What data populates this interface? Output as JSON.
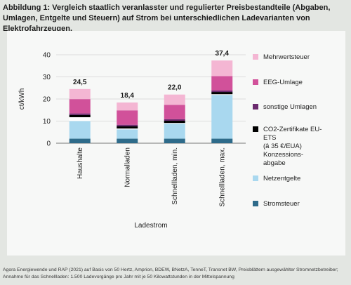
{
  "title": "Abbildung 1:  Vergleich staatlich veranlasster und regulierter Preisbestandteile (Abgaben, Umlagen, Entgelte und Steuern) auf Strom bei unterschiedlichen Ladevarianten von Elektrofahrzeugen.",
  "source": "Agora Energiewende und RAP (2021) auf Basis von 50 Hertz, Amprion, BDEW, BNetzA, TenneT, Transnet BW, Preisblättern ausgewählter Stromnetzbetreiber; Annahme für das Schnellladen: 1.500 Ladevorgänge pro Jahr mit je 50 Kilowattstunden in der Mittelspannung",
  "chart_data": {
    "type": "bar",
    "stacked": true,
    "categories": [
      "Haushalte",
      "Normalladen",
      "Schnellladen, min.",
      "Schnellladen, max."
    ],
    "totals": [
      "24,5",
      "18,4",
      "22,0",
      "37,4"
    ],
    "ylabel": "ct/kWh",
    "xlabel": "Ladestrom",
    "ylim": [
      0,
      40
    ],
    "yticks": [
      0,
      10,
      20,
      30,
      40
    ],
    "grid": true,
    "legend_position": "right",
    "series": [
      {
        "name": "Stromsteuer",
        "color": "#2e6b8a",
        "values": [
          2.05,
          2.05,
          2.05,
          2.05
        ]
      },
      {
        "name": "Netzentgelte",
        "color": "#a9d8ef",
        "values": [
          8.0,
          4.2,
          6.8,
          19.8
        ]
      },
      {
        "name": "Konzessions-abgabe",
        "color": "#ffffff",
        "values": [
          1.7,
          0.4,
          0.3,
          0.3
        ]
      },
      {
        "name": "CO2-Zertifikate EU-ETS (â 35 €/EUA)",
        "color": "#000000",
        "values": [
          1.0,
          1.0,
          1.0,
          1.0
        ]
      },
      {
        "name": "sonstige Umlagen",
        "color": "#6b2a6e",
        "values": [
          0.7,
          0.7,
          0.7,
          0.7
        ]
      },
      {
        "name": "EEG-Umlage",
        "color": "#d1519a",
        "values": [
          6.5,
          6.5,
          6.5,
          6.5
        ]
      },
      {
        "name": "Mehrwertsteuer",
        "color": "#f4b6d3",
        "values": [
          4.55,
          3.55,
          4.65,
          7.05
        ]
      }
    ],
    "legend": [
      {
        "label": "Mehrwertsteuer",
        "color": "#f4b6d3"
      },
      {
        "label": "EEG-Umlage",
        "color": "#d1519a"
      },
      {
        "label": "sonstige Umlagen",
        "color": "#6b2a6e"
      },
      {
        "label": "CO2-Zertifikate EU-ETS (â 35 €/EUA) Konzessions-abgabe",
        "color": "#000000"
      },
      {
        "label": "Netzentgelte",
        "color": "#a9d8ef"
      },
      {
        "label": "Stromsteuer",
        "color": "#2e6b8a"
      }
    ]
  }
}
